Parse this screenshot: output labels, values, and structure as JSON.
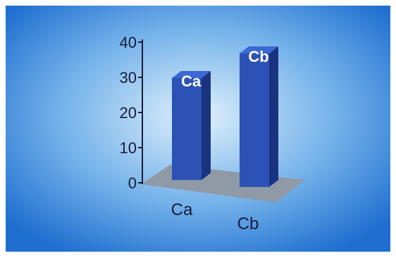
{
  "chart_data": {
    "type": "bar",
    "categories": [
      "Ca",
      "Cb"
    ],
    "values": [
      29,
      38
    ],
    "data_labels": [
      "Ca",
      "Cb"
    ],
    "title": "",
    "xlabel": "",
    "ylabel": "",
    "ylim": [
      0,
      40
    ],
    "yticks": [
      "0",
      "10",
      "20",
      "30",
      "40"
    ],
    "grid": false,
    "legend": "none",
    "style": "3d",
    "colors": {
      "background_center": "#dff0fb",
      "background_edge": "#1f6fd0",
      "bar_front": "#2c52b5",
      "bar_side": "#1a3380",
      "bar_top": "#3b68d2",
      "floor": "#8f9aa6",
      "axis": "#1b1b3a",
      "tick_text": "#1b1b3a",
      "bar_label_text": "#ffffff"
    }
  }
}
